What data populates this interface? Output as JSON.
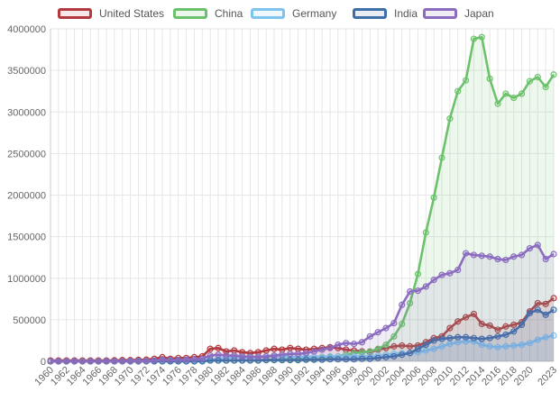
{
  "chart_data": {
    "type": "line",
    "title": "",
    "xlabel": "",
    "ylabel": "",
    "ylim": [
      0,
      4000000
    ],
    "yticks": [
      0,
      500000,
      1000000,
      1500000,
      2000000,
      2500000,
      3000000,
      3500000,
      4000000
    ],
    "ytick_labels": [
      "0",
      "500000",
      "1000000",
      "1500000",
      "2000000",
      "2500000",
      "3000000",
      "3500000",
      "4000000"
    ],
    "x_tick_labels": [
      "1960",
      "1962",
      "1964",
      "1966",
      "1968",
      "1970",
      "1972",
      "1974",
      "1976",
      "1978",
      "1980",
      "1982",
      "1984",
      "1986",
      "1988",
      "1990",
      "1992",
      "1994",
      "1996",
      "1998",
      "2000",
      "2002",
      "2004",
      "2006",
      "2008",
      "2010",
      "2012",
      "2014",
      "2016",
      "2018",
      "2020",
      "2023"
    ],
    "grid": true,
    "legend_position": "top",
    "x": [
      1960,
      1961,
      1962,
      1963,
      1964,
      1965,
      1966,
      1967,
      1968,
      1969,
      1970,
      1971,
      1972,
      1973,
      1974,
      1975,
      1976,
      1977,
      1978,
      1979,
      1980,
      1981,
      1982,
      1983,
      1984,
      1985,
      1986,
      1987,
      1988,
      1989,
      1990,
      1991,
      1992,
      1993,
      1994,
      1995,
      1996,
      1997,
      1998,
      1999,
      2000,
      2001,
      2002,
      2003,
      2004,
      2005,
      2006,
      2007,
      2008,
      2009,
      2010,
      2011,
      2012,
      2013,
      2014,
      2015,
      2016,
      2017,
      2018,
      2019,
      2020,
      2021,
      2022,
      2023
    ],
    "series": [
      {
        "name": "United States",
        "color": "#b23a3f",
        "fill": "rgba(178,58,63,0.12)",
        "values": [
          10000,
          10000,
          10000,
          10000,
          10000,
          10000,
          10000,
          10000,
          12000,
          15000,
          15000,
          18000,
          20000,
          30000,
          50000,
          30000,
          40000,
          40000,
          50000,
          60000,
          150000,
          160000,
          120000,
          130000,
          110000,
          100000,
          110000,
          130000,
          150000,
          140000,
          160000,
          150000,
          140000,
          150000,
          160000,
          170000,
          160000,
          140000,
          130000,
          120000,
          110000,
          140000,
          160000,
          180000,
          190000,
          180000,
          190000,
          230000,
          280000,
          300000,
          400000,
          480000,
          530000,
          570000,
          450000,
          430000,
          380000,
          420000,
          440000,
          470000,
          600000,
          700000,
          690000,
          760000
        ]
      },
      {
        "name": "China",
        "color": "#6cc26c",
        "fill": "rgba(108,194,108,0.12)",
        "values": [
          0,
          0,
          0,
          0,
          0,
          0,
          0,
          0,
          0,
          0,
          0,
          0,
          0,
          0,
          0,
          0,
          0,
          0,
          0,
          10000,
          10000,
          10000,
          10000,
          10000,
          10000,
          15000,
          15000,
          20000,
          20000,
          25000,
          25000,
          25000,
          30000,
          30000,
          40000,
          50000,
          60000,
          80000,
          100000,
          110000,
          120000,
          150000,
          200000,
          300000,
          450000,
          700000,
          1050000,
          1550000,
          1970000,
          2450000,
          2920000,
          3250000,
          3380000,
          3880000,
          3900000,
          3400000,
          3100000,
          3220000,
          3170000,
          3220000,
          3370000,
          3420000,
          3300000,
          3450000
        ]
      },
      {
        "name": "Germany",
        "color": "#7fc4ee",
        "fill": "rgba(127,196,238,0.12)",
        "values": [
          0,
          0,
          0,
          0,
          0,
          0,
          0,
          0,
          0,
          0,
          5000,
          5000,
          5000,
          5000,
          5000,
          5000,
          5000,
          5000,
          10000,
          15000,
          20000,
          30000,
          40000,
          50000,
          45000,
          45000,
          50000,
          55000,
          60000,
          60000,
          55000,
          55000,
          55000,
          55000,
          55000,
          60000,
          60000,
          60000,
          60000,
          60000,
          60000,
          70000,
          80000,
          90000,
          100000,
          100000,
          110000,
          130000,
          150000,
          180000,
          210000,
          230000,
          240000,
          240000,
          200000,
          180000,
          170000,
          180000,
          190000,
          200000,
          220000,
          260000,
          290000,
          310000
        ]
      },
      {
        "name": "India",
        "color": "#3f6fa8",
        "fill": "rgba(63,111,168,0.12)",
        "values": [
          0,
          0,
          0,
          0,
          0,
          0,
          0,
          0,
          0,
          0,
          0,
          0,
          0,
          0,
          0,
          0,
          0,
          0,
          0,
          0,
          10000,
          10000,
          10000,
          10000,
          10000,
          10000,
          10000,
          15000,
          15000,
          15000,
          15000,
          15000,
          20000,
          20000,
          20000,
          25000,
          25000,
          25000,
          25000,
          30000,
          30000,
          40000,
          50000,
          60000,
          80000,
          100000,
          150000,
          200000,
          250000,
          270000,
          280000,
          290000,
          290000,
          280000,
          270000,
          280000,
          300000,
          320000,
          360000,
          440000,
          580000,
          620000,
          560000,
          620000
        ]
      },
      {
        "name": "Japan",
        "color": "#8b6cc0",
        "fill": "rgba(139,108,192,0.12)",
        "values": [
          0,
          0,
          0,
          0,
          0,
          0,
          0,
          0,
          0,
          0,
          5000,
          5000,
          5000,
          10000,
          20000,
          15000,
          15000,
          20000,
          25000,
          30000,
          70000,
          80000,
          70000,
          70000,
          60000,
          55000,
          55000,
          60000,
          70000,
          80000,
          90000,
          90000,
          100000,
          120000,
          140000,
          160000,
          200000,
          220000,
          210000,
          230000,
          300000,
          350000,
          400000,
          460000,
          680000,
          840000,
          850000,
          900000,
          980000,
          1040000,
          1060000,
          1100000,
          1300000,
          1280000,
          1270000,
          1260000,
          1230000,
          1220000,
          1260000,
          1280000,
          1360000,
          1400000,
          1230000,
          1290000
        ]
      }
    ]
  }
}
